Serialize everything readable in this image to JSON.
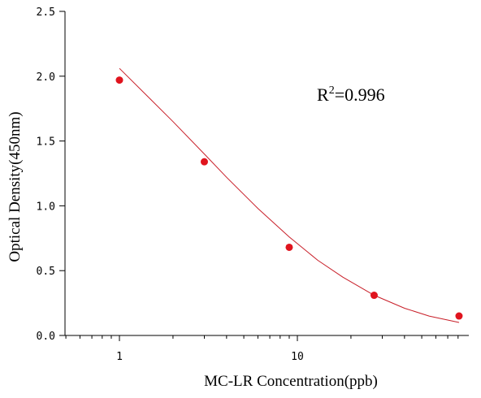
{
  "chart_data": {
    "type": "scatter",
    "title": "",
    "xlabel": "MC-LR Concentration(ppb)",
    "ylabel": "Optical Density(450nm)",
    "xscale": "log",
    "xlim": [
      0.5,
      80
    ],
    "ylim": [
      0,
      2.5
    ],
    "yticks": [
      0.0,
      0.5,
      1.0,
      1.5,
      2.0,
      2.5
    ],
    "ytick_labels": [
      "0.0",
      "0.5",
      "1.0",
      "1.5",
      "2.0",
      "2.5"
    ],
    "xticks": [
      1,
      10
    ],
    "xtick_labels": [
      "1",
      "10"
    ],
    "grid": false,
    "legend": "none",
    "series": [
      {
        "x": [
          1,
          3,
          9,
          27,
          81
        ],
        "y": [
          1.97,
          1.34,
          0.68,
          0.31,
          0.15
        ],
        "color": "#e0141e"
      }
    ],
    "fit_curve": {
      "x": [
        1,
        1.5,
        2,
        3,
        4,
        6,
        9,
        13,
        18,
        27,
        40,
        55,
        81
      ],
      "y": [
        2.06,
        1.82,
        1.65,
        1.4,
        1.22,
        0.98,
        0.76,
        0.58,
        0.45,
        0.31,
        0.21,
        0.15,
        0.1
      ],
      "color": "#c81e28"
    },
    "annotation": {
      "base": "R",
      "superscript": "2",
      "rest": "=0.996"
    }
  }
}
